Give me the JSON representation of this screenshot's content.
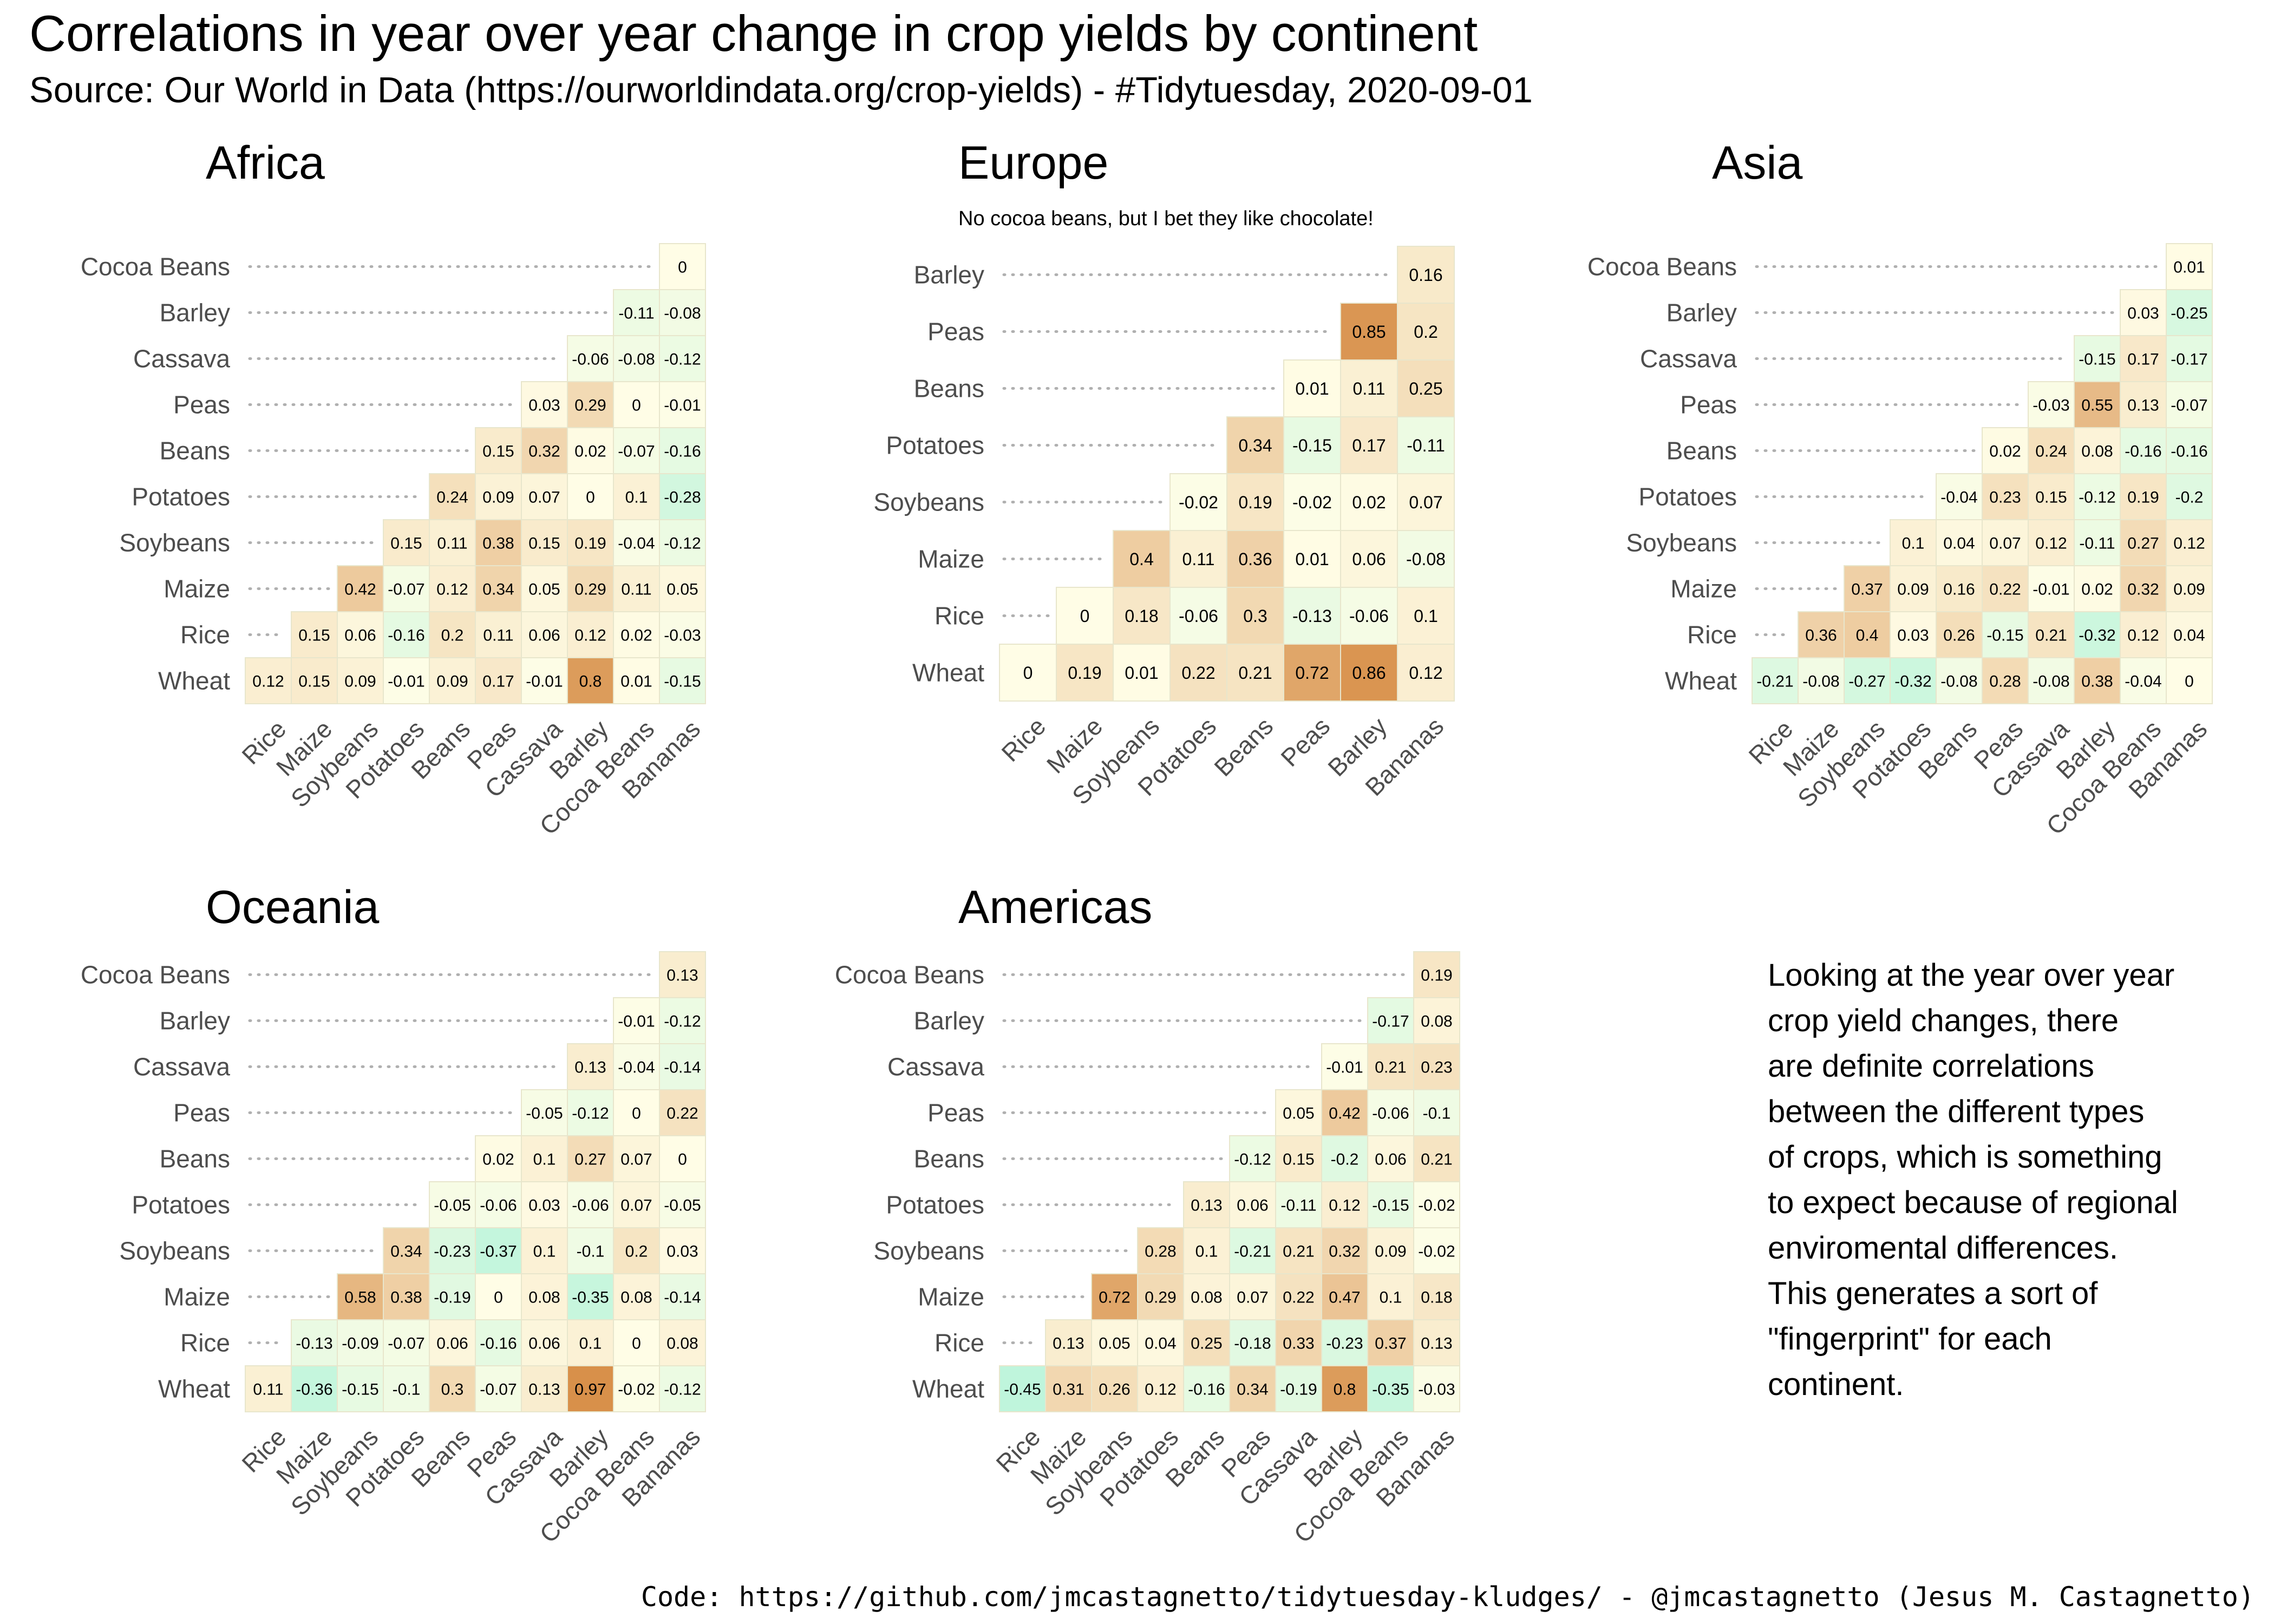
{
  "title": "Correlations in year over year change in crop yields by continent",
  "subtitle": "Source: Our World in Data (https://ourworldindata.org/crop-yields) - #Tidytuesday, 2020-09-01",
  "note": "Looking at the year over year\ncrop yield changes, there\nare definite correlations\nbetween the different types\nof crops, which is something\nto expect because of regional\nenviromental differences.\nThis generates a sort of\n\"fingerprint\" for each\ncontinent.",
  "caption": "Code: https://github.com/jmcastagnetto/tidytuesday-kludges/ - @jmcastagnetto (Jesus M. Castagnetto)",
  "colors": {
    "negative": "#bff5dc",
    "zero": "#fffde6",
    "positive": "#d8904a",
    "grid_border": "#e8e6cc",
    "dotted": "#b0b0b0",
    "axis_text": "#4d4d4d"
  },
  "chart_data": [
    {
      "type": "heatmap",
      "title": "Africa",
      "subtitle": "",
      "x": [
        "Rice",
        "Maize",
        "Soybeans",
        "Potatoes",
        "Beans",
        "Peas",
        "Cassava",
        "Barley",
        "Cocoa Beans",
        "Bananas"
      ],
      "y": [
        "Cocoa Beans",
        "Barley",
        "Cassava",
        "Peas",
        "Beans",
        "Potatoes",
        "Soybeans",
        "Maize",
        "Rice",
        "Wheat"
      ],
      "values": [
        [
          null,
          null,
          null,
          null,
          null,
          null,
          null,
          null,
          null,
          0
        ],
        [
          null,
          null,
          null,
          null,
          null,
          null,
          null,
          null,
          -0.11,
          -0.08
        ],
        [
          null,
          null,
          null,
          null,
          null,
          null,
          null,
          -0.06,
          -0.08,
          -0.12
        ],
        [
          null,
          null,
          null,
          null,
          null,
          null,
          0.03,
          0.29,
          0,
          -0.01
        ],
        [
          null,
          null,
          null,
          null,
          null,
          0.15,
          0.32,
          0.02,
          -0.07,
          -0.16
        ],
        [
          null,
          null,
          null,
          null,
          0.24,
          0.09,
          0.07,
          0,
          0.1,
          -0.28
        ],
        [
          null,
          null,
          null,
          0.15,
          0.11,
          0.38,
          0.15,
          0.19,
          -0.04,
          -0.12
        ],
        [
          null,
          null,
          0.42,
          -0.07,
          0.12,
          0.34,
          0.05,
          0.29,
          0.11,
          0.05
        ],
        [
          null,
          0.15,
          0.06,
          -0.16,
          0.2,
          0.11,
          0.06,
          0.12,
          0.02,
          -0.03
        ],
        [
          0.12,
          0.15,
          0.09,
          -0.01,
          0.09,
          0.17,
          -0.01,
          0.8,
          0.01,
          -0.15
        ]
      ]
    },
    {
      "type": "heatmap",
      "title": "Europe",
      "subtitle": "No cocoa beans, but I bet they like chocolate!",
      "x": [
        "Rice",
        "Maize",
        "Soybeans",
        "Potatoes",
        "Beans",
        "Peas",
        "Barley",
        "Bananas"
      ],
      "y": [
        "Barley",
        "Peas",
        "Beans",
        "Potatoes",
        "Soybeans",
        "Maize",
        "Rice",
        "Wheat"
      ],
      "values": [
        [
          null,
          null,
          null,
          null,
          null,
          null,
          null,
          0.16
        ],
        [
          null,
          null,
          null,
          null,
          null,
          null,
          0.85,
          0.2
        ],
        [
          null,
          null,
          null,
          null,
          null,
          0.01,
          0.11,
          0.25
        ],
        [
          null,
          null,
          null,
          null,
          0.34,
          -0.15,
          0.17,
          -0.11
        ],
        [
          null,
          null,
          null,
          -0.02,
          0.19,
          -0.02,
          0.02,
          0.07
        ],
        [
          null,
          null,
          0.4,
          0.11,
          0.36,
          0.01,
          0.06,
          -0.08
        ],
        [
          null,
          0,
          0.18,
          -0.06,
          0.3,
          -0.13,
          -0.06,
          0.1
        ],
        [
          0,
          0.19,
          0.01,
          0.22,
          0.21,
          0.72,
          0.86,
          0.12
        ]
      ]
    },
    {
      "type": "heatmap",
      "title": "Asia",
      "subtitle": "",
      "x": [
        "Rice",
        "Maize",
        "Soybeans",
        "Potatoes",
        "Beans",
        "Peas",
        "Cassava",
        "Barley",
        "Cocoa Beans",
        "Bananas"
      ],
      "y": [
        "Cocoa Beans",
        "Barley",
        "Cassava",
        "Peas",
        "Beans",
        "Potatoes",
        "Soybeans",
        "Maize",
        "Rice",
        "Wheat"
      ],
      "values": [
        [
          null,
          null,
          null,
          null,
          null,
          null,
          null,
          null,
          null,
          0.01
        ],
        [
          null,
          null,
          null,
          null,
          null,
          null,
          null,
          null,
          0.03,
          -0.25
        ],
        [
          null,
          null,
          null,
          null,
          null,
          null,
          null,
          -0.15,
          0.17,
          -0.17
        ],
        [
          null,
          null,
          null,
          null,
          null,
          null,
          -0.03,
          0.55,
          0.13,
          -0.07
        ],
        [
          null,
          null,
          null,
          null,
          null,
          0.02,
          0.24,
          0.08,
          -0.16,
          -0.16
        ],
        [
          null,
          null,
          null,
          null,
          -0.04,
          0.23,
          0.15,
          -0.12,
          0.19,
          -0.2
        ],
        [
          null,
          null,
          null,
          0.1,
          0.04,
          0.07,
          0.12,
          -0.11,
          0.27,
          0.12
        ],
        [
          null,
          null,
          0.37,
          0.09,
          0.16,
          0.22,
          -0.01,
          0.02,
          0.32,
          0.09
        ],
        [
          null,
          0.36,
          0.4,
          0.03,
          0.26,
          -0.15,
          0.21,
          -0.32,
          0.12,
          0.04
        ],
        [
          -0.21,
          -0.08,
          -0.27,
          -0.32,
          -0.08,
          0.28,
          -0.08,
          0.38,
          -0.04,
          0
        ]
      ]
    },
    {
      "type": "heatmap",
      "title": "Oceania",
      "subtitle": "",
      "x": [
        "Rice",
        "Maize",
        "Soybeans",
        "Potatoes",
        "Beans",
        "Peas",
        "Cassava",
        "Barley",
        "Cocoa Beans",
        "Bananas"
      ],
      "y": [
        "Cocoa Beans",
        "Barley",
        "Cassava",
        "Peas",
        "Beans",
        "Potatoes",
        "Soybeans",
        "Maize",
        "Rice",
        "Wheat"
      ],
      "values": [
        [
          null,
          null,
          null,
          null,
          null,
          null,
          null,
          null,
          null,
          0.13
        ],
        [
          null,
          null,
          null,
          null,
          null,
          null,
          null,
          null,
          -0.01,
          -0.12
        ],
        [
          null,
          null,
          null,
          null,
          null,
          null,
          null,
          0.13,
          -0.04,
          -0.14
        ],
        [
          null,
          null,
          null,
          null,
          null,
          null,
          -0.05,
          -0.12,
          0,
          0.22
        ],
        [
          null,
          null,
          null,
          null,
          null,
          0.02,
          0.1,
          0.27,
          0.07,
          0
        ],
        [
          null,
          null,
          null,
          null,
          -0.05,
          -0.06,
          0.03,
          -0.06,
          0.07,
          -0.05
        ],
        [
          null,
          null,
          null,
          0.34,
          -0.23,
          -0.37,
          0.1,
          -0.1,
          0.2,
          0.03
        ],
        [
          null,
          null,
          0.58,
          0.38,
          -0.19,
          0,
          0.08,
          -0.35,
          0.08,
          -0.14
        ],
        [
          null,
          -0.13,
          -0.09,
          -0.07,
          0.06,
          -0.16,
          0.06,
          0.1,
          0,
          0.08
        ],
        [
          0.11,
          -0.36,
          -0.15,
          -0.1,
          0.3,
          -0.07,
          0.13,
          0.97,
          -0.02,
          -0.12
        ]
      ]
    },
    {
      "type": "heatmap",
      "title": "Americas",
      "subtitle": "",
      "x": [
        "Rice",
        "Maize",
        "Soybeans",
        "Potatoes",
        "Beans",
        "Peas",
        "Cassava",
        "Barley",
        "Cocoa Beans",
        "Bananas"
      ],
      "y": [
        "Cocoa Beans",
        "Barley",
        "Cassava",
        "Peas",
        "Beans",
        "Potatoes",
        "Soybeans",
        "Maize",
        "Rice",
        "Wheat"
      ],
      "values": [
        [
          null,
          null,
          null,
          null,
          null,
          null,
          null,
          null,
          null,
          0.19
        ],
        [
          null,
          null,
          null,
          null,
          null,
          null,
          null,
          null,
          -0.17,
          0.08
        ],
        [
          null,
          null,
          null,
          null,
          null,
          null,
          null,
          -0.01,
          0.21,
          0.23
        ],
        [
          null,
          null,
          null,
          null,
          null,
          null,
          0.05,
          0.42,
          -0.06,
          -0.1
        ],
        [
          null,
          null,
          null,
          null,
          null,
          -0.12,
          0.15,
          -0.2,
          0.06,
          0.21
        ],
        [
          null,
          null,
          null,
          null,
          0.13,
          0.06,
          -0.11,
          0.12,
          -0.15,
          -0.02
        ],
        [
          null,
          null,
          null,
          0.28,
          0.1,
          -0.21,
          0.21,
          0.32,
          0.09,
          -0.02
        ],
        [
          null,
          null,
          0.72,
          0.29,
          0.08,
          0.07,
          0.22,
          0.47,
          0.1,
          0.18
        ],
        [
          null,
          0.13,
          0.05,
          0.04,
          0.25,
          -0.18,
          0.33,
          -0.23,
          0.37,
          0.13
        ],
        [
          -0.45,
          0.31,
          0.26,
          0.12,
          -0.16,
          0.34,
          -0.19,
          0.8,
          -0.35,
          -0.03
        ]
      ]
    }
  ]
}
